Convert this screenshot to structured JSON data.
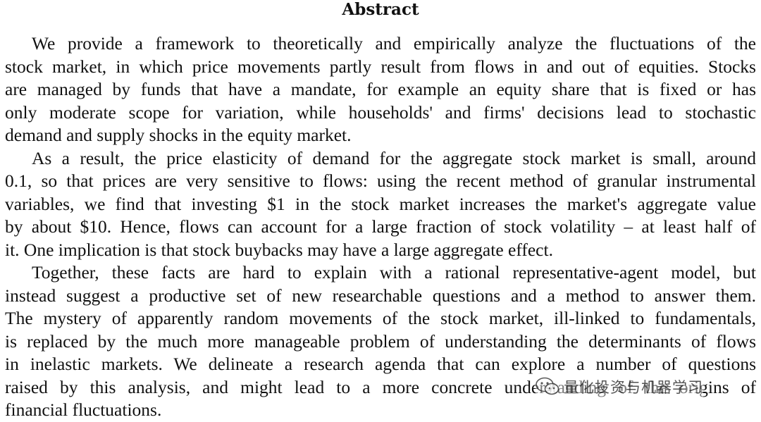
{
  "heading": "Abstract",
  "paragraphs": [
    {
      "lines": [
        "We provide a framework to theoretically and empirically analyze the fluctuations of the",
        "stock market, in which price movements partly result from flows in and out of equities. Stocks",
        "are managed by funds that have a mandate, for example an equity share that is fixed or has",
        "only moderate scope for variation, while households' and firms' decisions lead to stochastic",
        "demand and supply shocks in the equity market."
      ]
    },
    {
      "lines": [
        "As a result, the price elasticity of demand for the aggregate stock market is small, around",
        "0.1, so that prices are very sensitive to flows: using the recent method of granular instrumental",
        "variables, we find that investing $1 in the stock market increases the market's aggregate value",
        "by about $10. Hence, flows can account for a large fraction of stock volatility – at least half of",
        "it. One implication is that stock buybacks may have a large aggregate effect."
      ]
    },
    {
      "lines": [
        "Together, these facts are hard to explain with a rational representative-agent model, but",
        "instead suggest a productive set of new researchable questions and a method to answer them.",
        "The mystery of apparently random movements of the stock market, ill-linked to fundamentals,",
        "is replaced by the much more manageable problem of understanding the determinants of flows",
        "in inelastic markets. We delineate a research agenda that can explore a number of questions",
        "raised by this analysis, and might lead to a more concrete understanding of the origins of",
        "financial fluctuations."
      ]
    }
  ],
  "watermark": {
    "text": "量化投资与机器学习",
    "icon": "wechat-icon"
  }
}
